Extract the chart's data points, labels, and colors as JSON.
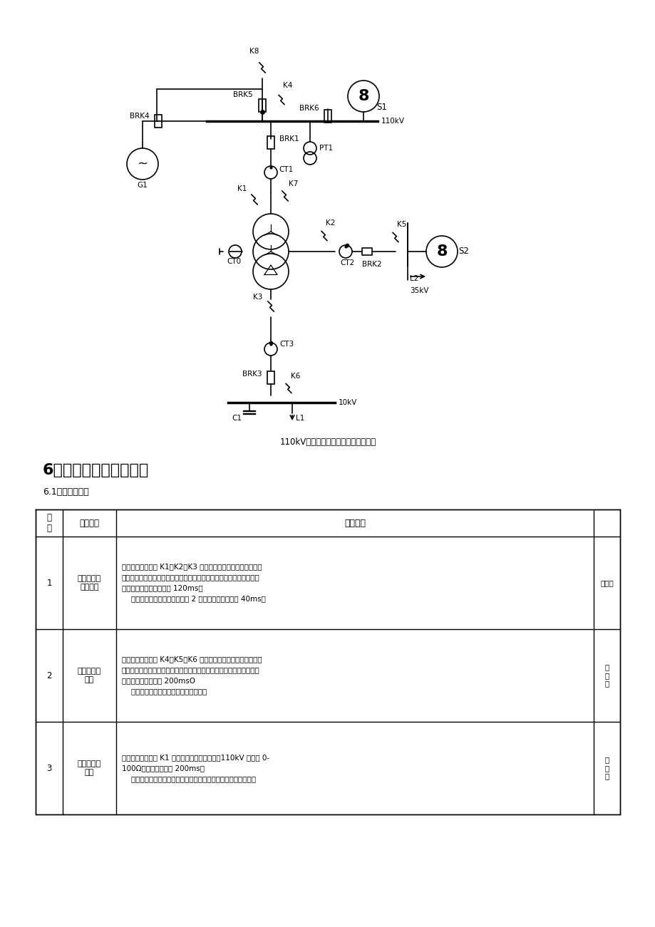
{
  "page_bg": "#ffffff",
  "diagram_caption": "110kV变压器保护动态模拟系统示意图",
  "section_title": "6、项目设置及类别定级",
  "section_sub": "6.1动态检测项目",
  "table_headers": [
    "序\n号",
    "试验项目",
    "技术要求",
    ""
  ],
  "table_rows": [
    {
      "id": "1",
      "name": "区内金属性\n短路故障",
      "content": "分别模拟保护区内 K1、K2、K3 点金属性瞬时短路故障，故障类\n型包含单相接地、两相短路接地、两相相间短路、三相短路及三相短路\n接地故障，故障持续时间 120ms。\n    要求：比率差动保护大于等于 2 倍整定值时应不大于 40ms。",
      "tag": "关键项"
    },
    {
      "id": "2",
      "name": "区外金属性\n故障",
      "content": "分别模拟保护区外 K4、K5、K6 点金属性短路故障，故障类型包\n含单相接地、两相短路接地、两相相间短路、三相短路及三相短路接地\n故障，故障持续时间 200msO\n    要求：区外故障差动保护可靠不动作。",
      "tag": "键\n关\n项"
    },
    {
      "id": "3",
      "name": "经过渡电阻\n短路",
      "content": "分别模拟保护区内 K1 点单相经电阻接地故障，110kV 侧电阻 0-\n100Ω，故障持续时间 200ms。\n    要求：当差流大于差动保护动作电流定值时，保护要可靠动作。",
      "tag": "键\n关\n项"
    }
  ]
}
